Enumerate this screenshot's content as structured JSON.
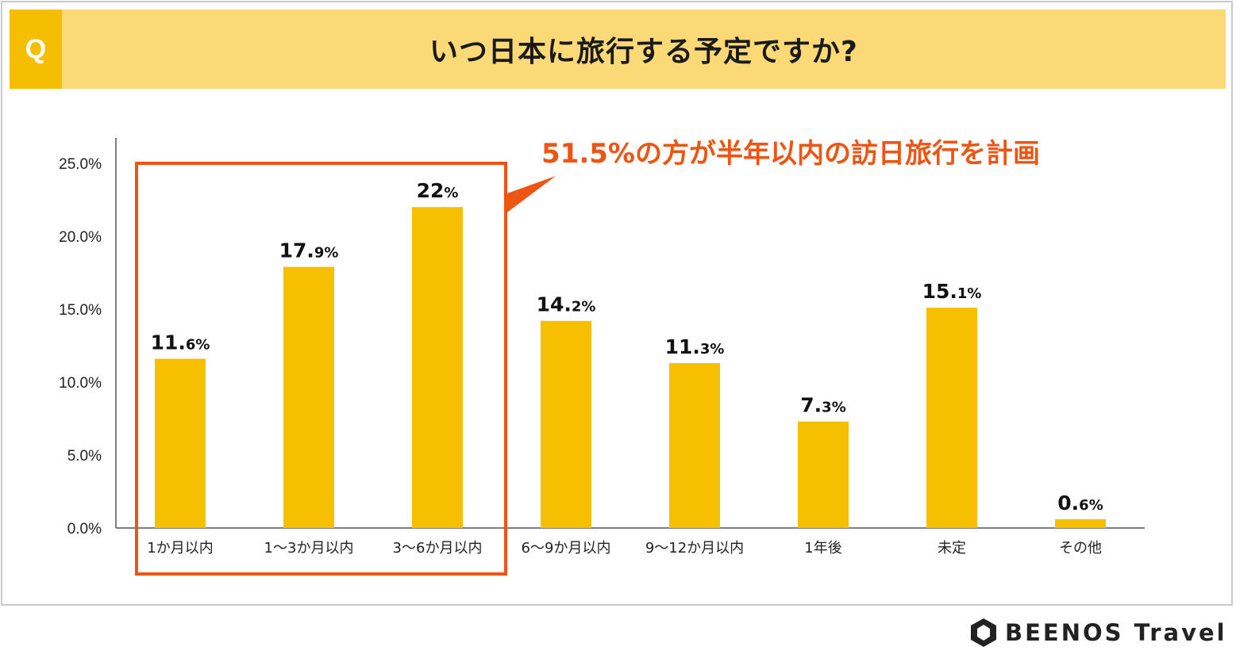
{
  "header": {
    "q_label": "Q",
    "title": "いつ日本に旅行する予定ですか?"
  },
  "callout": {
    "text": "51.5%の方が半年以内の訪日旅行を計画",
    "color": "#ee5513"
  },
  "brand": {
    "name": "BEENOS Travel"
  },
  "colors": {
    "bar": "#f6bf00",
    "header_bg": "#fbd977",
    "q_box": "#f5bf00",
    "highlight": "#ee5513"
  },
  "chart_data": {
    "type": "bar",
    "categories": [
      "1か月以内",
      "1〜3か月以内",
      "3〜6か月以内",
      "6〜9か月以内",
      "9〜12か月以内",
      "1年後",
      "未定",
      "その他"
    ],
    "values": [
      11.6,
      17.9,
      22,
      14.2,
      11.3,
      7.3,
      15.1,
      0.6
    ],
    "value_labels": [
      {
        "int": "11.",
        "dec": "6%"
      },
      {
        "int": "17.",
        "dec": "9%"
      },
      {
        "int": "22",
        "dec": "%"
      },
      {
        "int": "14.",
        "dec": "2%"
      },
      {
        "int": "11.",
        "dec": "3%"
      },
      {
        "int": "7.",
        "dec": "3%"
      },
      {
        "int": "15.",
        "dec": "1%"
      },
      {
        "int": "0.",
        "dec": "6%"
      }
    ],
    "yticks": [
      "0.0%",
      "5.0%",
      "10.0%",
      "15.0%",
      "20.0%",
      "25.0%"
    ],
    "ytick_values": [
      0,
      5,
      10,
      15,
      20,
      25
    ],
    "ylim": [
      0,
      25
    ],
    "highlighted_categories": [
      "1か月以内",
      "1〜3か月以内",
      "3〜6か月以内"
    ],
    "grid": false
  }
}
